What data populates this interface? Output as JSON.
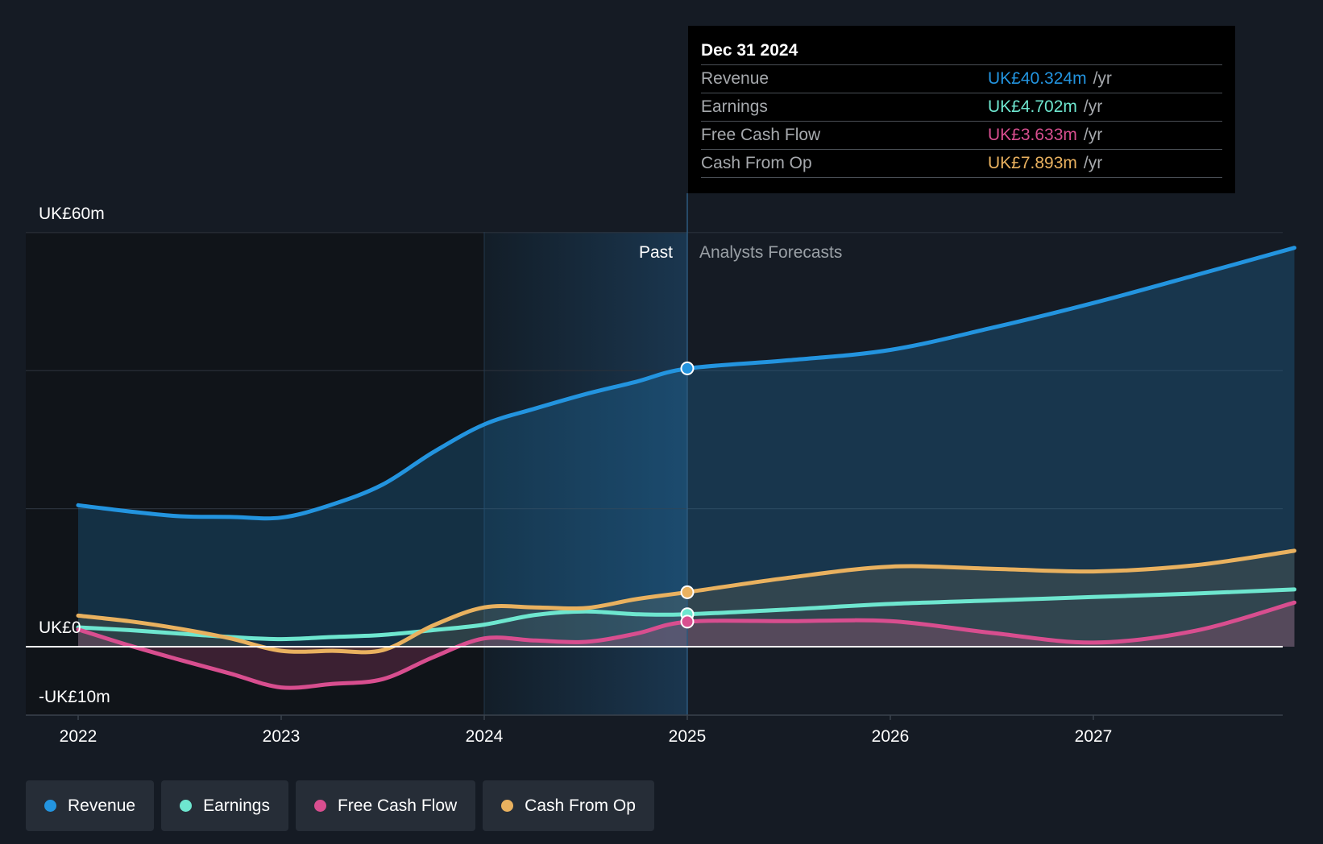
{
  "tooltip": {
    "date": "Dec 31 2024",
    "rows": [
      {
        "label": "Revenue",
        "value": "UK£40.324m",
        "unit": "/yr",
        "color": "#2394df"
      },
      {
        "label": "Earnings",
        "value": "UK£4.702m",
        "unit": "/yr",
        "color": "#6ee6cf"
      },
      {
        "label": "Free Cash Flow",
        "value": "UK£3.633m",
        "unit": "/yr",
        "color": "#d84e8f"
      },
      {
        "label": "Cash From Op",
        "value": "UK£7.893m",
        "unit": "/yr",
        "color": "#e9b15f"
      }
    ]
  },
  "legend": [
    {
      "label": "Revenue",
      "color": "#2394df"
    },
    {
      "label": "Earnings",
      "color": "#6ee6cf"
    },
    {
      "label": "Free Cash Flow",
      "color": "#d84e8f"
    },
    {
      "label": "Cash From Op",
      "color": "#e9b15f"
    }
  ],
  "chart_data": {
    "type": "line",
    "y_unit": "UK£m",
    "ylim": [
      -10,
      60
    ],
    "xlim": [
      2021.75,
      2027.99
    ],
    "y_ticks": [
      {
        "value": 60,
        "label": "UK£60m"
      },
      {
        "value": 0,
        "label": "UK£0"
      },
      {
        "value": -10,
        "label": "-UK£10m"
      }
    ],
    "gridlines": [
      60,
      40,
      20,
      0
    ],
    "x_ticks": [
      {
        "value": 2022,
        "label": "2022"
      },
      {
        "value": 2023,
        "label": "2023"
      },
      {
        "value": 2024,
        "label": "2024"
      },
      {
        "value": 2025,
        "label": "2025"
      },
      {
        "value": 2026,
        "label": "2026"
      },
      {
        "value": 2027,
        "label": "2027"
      }
    ],
    "past_label": "Past",
    "forecast_label": "Analysts Forecasts",
    "divider_x": 2025.0,
    "highlight_start_x": 2024.0,
    "marker_x": 2025.0,
    "series": [
      {
        "name": "Revenue",
        "color": "#2394df",
        "fill": true,
        "points": [
          [
            2022.0,
            20.5
          ],
          [
            2022.25,
            19.6
          ],
          [
            2022.5,
            18.9
          ],
          [
            2022.75,
            18.8
          ],
          [
            2023.0,
            18.7
          ],
          [
            2023.25,
            20.6
          ],
          [
            2023.5,
            23.5
          ],
          [
            2023.75,
            28.2
          ],
          [
            2024.0,
            32.2
          ],
          [
            2024.25,
            34.5
          ],
          [
            2024.5,
            36.6
          ],
          [
            2024.75,
            38.4
          ],
          [
            2025.0,
            40.3
          ],
          [
            2025.5,
            41.5
          ],
          [
            2026.0,
            43.0
          ],
          [
            2026.5,
            46.2
          ],
          [
            2027.0,
            49.8
          ],
          [
            2027.5,
            53.8
          ],
          [
            2027.99,
            57.8
          ]
        ],
        "marker": 40.324
      },
      {
        "name": "Earnings",
        "color": "#6ee6cf",
        "fill": false,
        "points": [
          [
            2022.0,
            2.8
          ],
          [
            2022.25,
            2.4
          ],
          [
            2022.5,
            1.9
          ],
          [
            2022.75,
            1.4
          ],
          [
            2023.0,
            1.1
          ],
          [
            2023.25,
            1.4
          ],
          [
            2023.5,
            1.7
          ],
          [
            2023.75,
            2.4
          ],
          [
            2024.0,
            3.2
          ],
          [
            2024.25,
            4.6
          ],
          [
            2024.5,
            5.1
          ],
          [
            2024.75,
            4.7
          ],
          [
            2025.0,
            4.7
          ],
          [
            2025.5,
            5.4
          ],
          [
            2026.0,
            6.2
          ],
          [
            2026.5,
            6.7
          ],
          [
            2027.0,
            7.2
          ],
          [
            2027.5,
            7.7
          ],
          [
            2027.99,
            8.3
          ]
        ],
        "marker": 4.702
      },
      {
        "name": "Free Cash Flow",
        "color": "#d84e8f",
        "fill": true,
        "points": [
          [
            2022.0,
            2.5
          ],
          [
            2022.25,
            0.2
          ],
          [
            2022.5,
            -1.9
          ],
          [
            2022.75,
            -3.9
          ],
          [
            2023.0,
            -5.9
          ],
          [
            2023.25,
            -5.4
          ],
          [
            2023.5,
            -4.7
          ],
          [
            2023.75,
            -1.5
          ],
          [
            2024.0,
            1.2
          ],
          [
            2024.25,
            0.9
          ],
          [
            2024.5,
            0.7
          ],
          [
            2024.75,
            1.9
          ],
          [
            2025.0,
            3.6
          ],
          [
            2025.5,
            3.7
          ],
          [
            2026.0,
            3.7
          ],
          [
            2026.5,
            2.0
          ],
          [
            2027.0,
            0.6
          ],
          [
            2027.5,
            2.3
          ],
          [
            2027.99,
            6.4
          ]
        ],
        "marker": 3.633
      },
      {
        "name": "Cash From Op",
        "color": "#e9b15f",
        "fill": true,
        "points": [
          [
            2022.0,
            4.5
          ],
          [
            2022.25,
            3.7
          ],
          [
            2022.5,
            2.6
          ],
          [
            2022.75,
            1.2
          ],
          [
            2023.0,
            -0.6
          ],
          [
            2023.25,
            -0.6
          ],
          [
            2023.5,
            -0.5
          ],
          [
            2023.75,
            3.1
          ],
          [
            2024.0,
            5.7
          ],
          [
            2024.25,
            5.7
          ],
          [
            2024.5,
            5.6
          ],
          [
            2024.75,
            6.9
          ],
          [
            2025.0,
            7.9
          ],
          [
            2025.5,
            10.0
          ],
          [
            2026.0,
            11.6
          ],
          [
            2026.5,
            11.3
          ],
          [
            2027.0,
            10.9
          ],
          [
            2027.5,
            11.8
          ],
          [
            2027.99,
            13.9
          ]
        ],
        "marker": 7.893
      }
    ]
  }
}
